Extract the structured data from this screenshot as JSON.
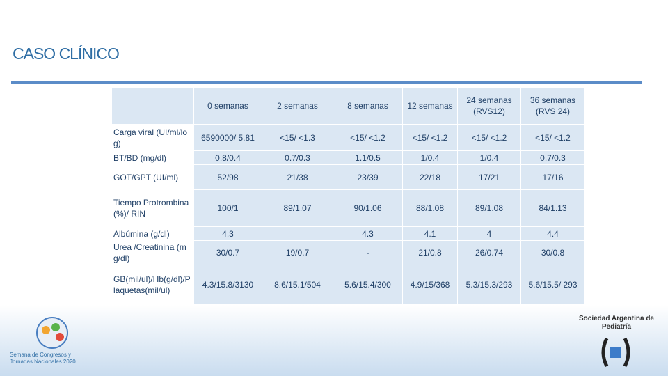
{
  "header": {
    "title": "CASO CLÍNICO"
  },
  "table": {
    "columns": [
      "0 semanas",
      "2 semanas",
      "8 semanas",
      "12 semanas",
      "24 semanas (RVS12)",
      "36 semanas (RVS 24)"
    ],
    "rows": [
      {
        "label": "Carga viral (UI/ml/log)",
        "cells": [
          "6590000/ 5.81",
          "<15/ <1.3",
          "<15/ <1.2",
          "<15/ <1.2",
          "<15/ <1.2",
          "<15/ <1.2"
        ]
      },
      {
        "label": "BT/BD (mg/dl)",
        "cells": [
          "0.8/0.4",
          "0.7/0.3",
          "1.1/0.5",
          "1/0.4",
          "1/0.4",
          "0.7/0.3"
        ]
      },
      {
        "label": "GOT/GPT (UI/ml)",
        "cells": [
          "52/98",
          "21/38",
          "23/39",
          "22/18",
          "17/21",
          "17/16"
        ]
      },
      {
        "label": "Tiempo Protrombina (%)/ RIN",
        "cells": [
          "100/1",
          "89/1.07",
          "90/1.06",
          "88/1.08",
          "89/1.08",
          "84/1.13"
        ]
      },
      {
        "label": "Albúmina (g/dl)",
        "cells": [
          "4.3",
          null,
          "4.3",
          "4.1",
          "4",
          "4.4"
        ]
      },
      {
        "label": "Urea /Creatinina (mg/dl)",
        "cells": [
          "30/0.7",
          "19/0.7",
          "-",
          "21/0.8",
          "26/0.74",
          "30/0.8"
        ]
      },
      {
        "label": "GB(mil/ul)/Hb(g/dl)/Plaquetas(mil/ul)",
        "cells": [
          "4.3/15.8/3130",
          "8.6/15.1/504",
          "5.6/15.4/300",
          "4.9/15/368",
          "5.3/15.3/293",
          "5.6/15.5/ 293"
        ]
      }
    ]
  },
  "footer": {
    "left_logo": "Semana de Congresos y Jornadas Nacionales 2020",
    "right_logo": "Sociedad Argentina de Pediatría"
  }
}
